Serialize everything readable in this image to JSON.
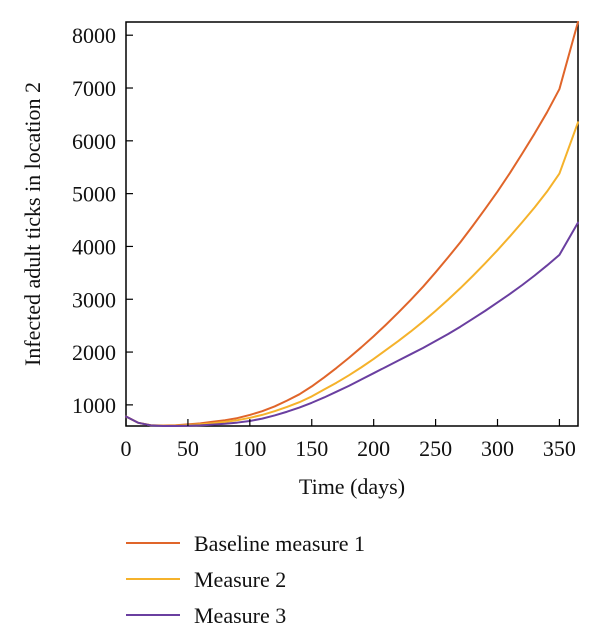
{
  "chart_data": {
    "type": "line",
    "title": "",
    "xlabel": "Time (days)",
    "ylabel": "Infected adult ticks in location 2",
    "xlim": [
      0,
      365
    ],
    "ylim": [
      600,
      8250
    ],
    "xticks": [
      0,
      50,
      100,
      150,
      200,
      250,
      300,
      350
    ],
    "yticks": [
      1000,
      2000,
      3000,
      4000,
      5000,
      6000,
      7000,
      8000
    ],
    "grid": false,
    "legend_position": "bottom",
    "series": [
      {
        "name": "Baseline measure 1",
        "color": "#e0652a",
        "x": [
          0,
          10,
          20,
          30,
          40,
          50,
          60,
          70,
          80,
          90,
          100,
          110,
          120,
          130,
          140,
          150,
          160,
          170,
          180,
          190,
          200,
          210,
          220,
          230,
          240,
          250,
          260,
          270,
          280,
          290,
          300,
          310,
          320,
          330,
          340,
          350,
          365
        ],
        "y": [
          780,
          660,
          615,
          610,
          615,
          630,
          650,
          680,
          710,
          750,
          810,
          880,
          970,
          1080,
          1200,
          1350,
          1520,
          1700,
          1890,
          2090,
          2300,
          2520,
          2750,
          2990,
          3240,
          3510,
          3790,
          4080,
          4390,
          4710,
          5040,
          5390,
          5760,
          6140,
          6540,
          6980,
          8250
        ]
      },
      {
        "name": "Measure 2",
        "color": "#f5b22b",
        "x": [
          0,
          10,
          20,
          30,
          40,
          50,
          60,
          70,
          80,
          90,
          100,
          110,
          120,
          130,
          140,
          150,
          160,
          170,
          180,
          190,
          200,
          210,
          220,
          230,
          240,
          250,
          260,
          270,
          280,
          290,
          300,
          310,
          320,
          330,
          340,
          350,
          365
        ],
        "y": [
          780,
          660,
          615,
          605,
          608,
          618,
          632,
          652,
          678,
          710,
          755,
          810,
          880,
          960,
          1050,
          1160,
          1290,
          1420,
          1560,
          1710,
          1870,
          2040,
          2210,
          2390,
          2580,
          2780,
          2990,
          3210,
          3440,
          3680,
          3930,
          4190,
          4460,
          4740,
          5040,
          5380,
          6350
        ]
      },
      {
        "name": "Measure 3",
        "color": "#6a3fa0",
        "x": [
          0,
          10,
          20,
          30,
          40,
          50,
          60,
          70,
          80,
          90,
          100,
          110,
          120,
          130,
          140,
          150,
          160,
          170,
          180,
          190,
          200,
          210,
          220,
          230,
          240,
          250,
          260,
          270,
          280,
          290,
          300,
          310,
          320,
          330,
          340,
          350,
          365
        ],
        "y": [
          780,
          660,
          612,
          600,
          600,
          605,
          612,
          625,
          642,
          665,
          695,
          740,
          800,
          870,
          950,
          1040,
          1140,
          1250,
          1360,
          1480,
          1600,
          1720,
          1840,
          1960,
          2080,
          2210,
          2340,
          2480,
          2630,
          2780,
          2940,
          3100,
          3270,
          3450,
          3640,
          3840,
          4450
        ]
      }
    ]
  }
}
